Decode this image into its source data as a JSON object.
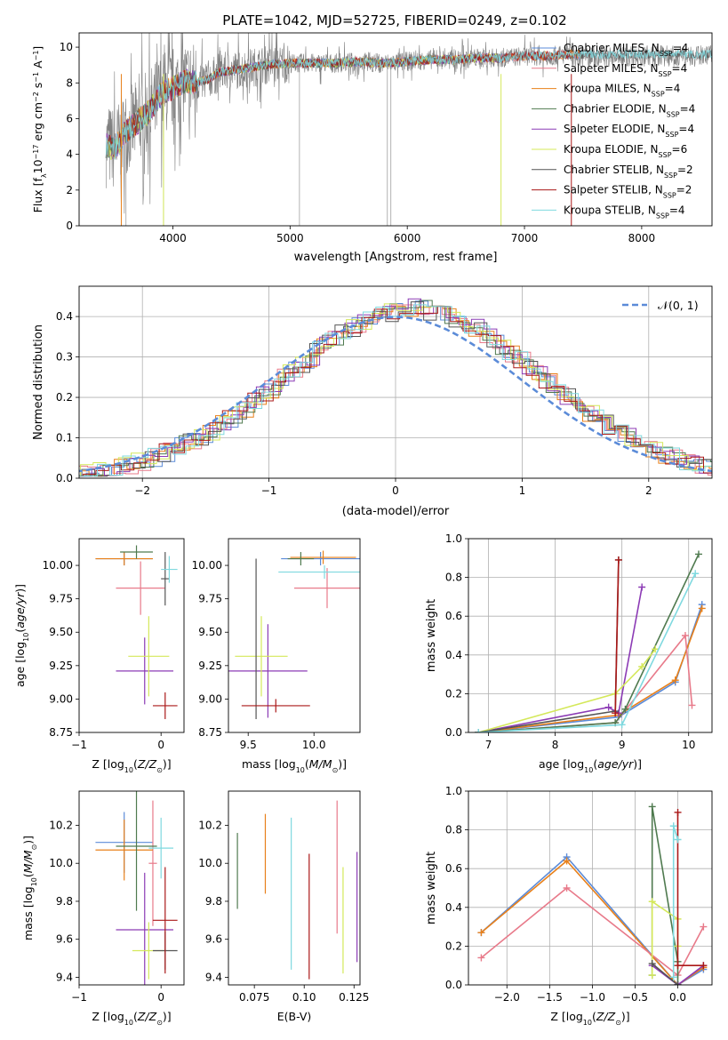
{
  "figure": {
    "title": "PLATE=1042, MJD=52725, FIBERID=0249, z=0.102"
  },
  "colors": {
    "Chabrier MILES": "#5b8bd8",
    "Salpeter MILES": "#e87a8a",
    "Kroupa MILES": "#e8801a",
    "Chabrier ELODIE": "#4f7a4f",
    "Salpeter ELODIE": "#8c3bb5",
    "Kroupa ELODIE": "#d4e85a",
    "Chabrier STELIB": "#555555",
    "Salpeter STELIB": "#aa1818",
    "Kroupa STELIB": "#7fd9df",
    "data": "#808080",
    "gaussian": "#5b8bd8"
  },
  "chart_data": [
    {
      "id": "spectrum",
      "type": "line",
      "xlabel": "wavelength [Angstrom, rest frame]",
      "ylabel": "Flux [f_λ 10^-17 erg cm^-2 s^-1 A^-1]",
      "xlim": [
        3200,
        8600
      ],
      "ylim": [
        0,
        10.8
      ],
      "xticks": [
        4000,
        5000,
        6000,
        7000,
        8000
      ],
      "yticks": [
        0,
        2,
        4,
        6,
        8,
        10
      ],
      "legend_position": "top-right",
      "legend": [
        "Chabrier MILES, N_SSP=4",
        "Salpeter MILES, N_SSP=4",
        "Kroupa MILES, N_SSP=4",
        "Chabrier ELODIE, N_SSP=4",
        "Salpeter ELODIE, N_SSP=4",
        "Kroupa ELODIE, N_SSP=6",
        "Chabrier STELIB, N_SSP=2",
        "Salpeter STELIB, N_SSP=2",
        "Kroupa STELIB, N_SSP=4"
      ],
      "continuum": {
        "x": [
          3430,
          3500,
          3600,
          3700,
          3800,
          3900,
          4000,
          4100,
          4200,
          4300,
          4400,
          4600,
          4800,
          5000,
          5200,
          5400,
          5600,
          5800,
          6000,
          6200,
          6400,
          6600,
          6800,
          7000,
          7200,
          7400
        ],
        "y": [
          4.5,
          4.3,
          5.3,
          5.8,
          6.4,
          7.4,
          7.7,
          8.1,
          8.0,
          8.2,
          8.6,
          8.8,
          9.0,
          9.1,
          9.1,
          9.1,
          9.2,
          9.1,
          9.2,
          9.3,
          9.3,
          9.4,
          9.4,
          9.5,
          9.5,
          9.6
        ]
      }
    },
    {
      "id": "residuals",
      "type": "bar",
      "xlabel": "(data-model)/error",
      "ylabel": "Normed distribution",
      "xlim": [
        -2.5,
        2.5
      ],
      "ylim": [
        0,
        0.475
      ],
      "xticks": [
        -2,
        -1,
        0,
        1,
        2
      ],
      "yticks": [
        0.0,
        0.1,
        0.2,
        0.3,
        0.4
      ],
      "grid": true,
      "legend": [
        "N(0,1)"
      ],
      "legend_position": "top-right"
    },
    {
      "id": "age-vs-Z",
      "type": "scatter",
      "xlabel": "Z [log10(Z/Z⊙)]",
      "ylabel": "age [log10(age/yr)]",
      "xlim": [
        -1.0,
        0.28
      ],
      "ylim": [
        8.75,
        10.2
      ],
      "xticks": [
        -1,
        0
      ],
      "yticks": [
        8.75,
        9.0,
        9.25,
        9.5,
        9.75,
        10.0
      ],
      "points": [
        {
          "model": "Chabrier MILES",
          "x": -0.45,
          "xerr": 0.35,
          "y": 10.05,
          "yerr": 0.05
        },
        {
          "model": "Salpeter MILES",
          "x": -0.25,
          "xerr": 0.3,
          "y": 9.83,
          "yerr": 0.2
        },
        {
          "model": "Kroupa MILES",
          "x": -0.45,
          "xerr": 0.35,
          "y": 10.05,
          "yerr": 0.05
        },
        {
          "model": "Chabrier ELODIE",
          "x": -0.3,
          "xerr": 0.2,
          "y": 10.1,
          "yerr": 0.05
        },
        {
          "model": "Salpeter ELODIE",
          "x": -0.2,
          "xerr": 0.35,
          "y": 9.21,
          "yerr": 0.25
        },
        {
          "model": "Kroupa ELODIE",
          "x": -0.15,
          "xerr": 0.25,
          "y": 9.32,
          "yerr": 0.3
        },
        {
          "model": "Chabrier STELIB",
          "x": 0.05,
          "xerr": 0.05,
          "y": 9.9,
          "yerr": 0.2
        },
        {
          "model": "Salpeter STELIB",
          "x": 0.05,
          "xerr": 0.15,
          "y": 8.95,
          "yerr": 0.1
        },
        {
          "model": "Kroupa STELIB",
          "x": 0.1,
          "xerr": 0.1,
          "y": 9.97,
          "yerr": 0.1
        }
      ]
    },
    {
      "id": "age-vs-mass",
      "type": "scatter",
      "xlabel": "mass [log10(M/M⊙)]",
      "xlim": [
        9.35,
        10.35
      ],
      "ylim": [
        8.75,
        10.2
      ],
      "xticks": [
        9.5,
        10.0
      ],
      "yticks": [
        8.75,
        9.0,
        9.25,
        9.5,
        9.75,
        10.0
      ]
    },
    {
      "id": "weight-vs-age",
      "type": "line",
      "xlabel": "age [log10(age/yr)]",
      "ylabel": "mass weight",
      "xlim": [
        6.7,
        10.35
      ],
      "ylim": [
        0,
        1.0
      ],
      "xticks": [
        7,
        8,
        9,
        10
      ],
      "yticks": [
        0.0,
        0.2,
        0.4,
        0.6,
        0.8,
        1.0
      ],
      "grid": true,
      "series": [
        {
          "model": "Chabrier MILES",
          "x": [
            6.85,
            8.95,
            9.8,
            10.2
          ],
          "y": [
            0.0,
            0.08,
            0.26,
            0.66
          ]
        },
        {
          "model": "Kroupa MILES",
          "x": [
            6.85,
            8.95,
            9.8,
            10.2
          ],
          "y": [
            0.0,
            0.09,
            0.27,
            0.64
          ]
        },
        {
          "model": "Salpeter MILES",
          "x": [
            6.85,
            8.9,
            9.95,
            10.05
          ],
          "y": [
            0.0,
            0.05,
            0.5,
            0.14
          ]
        },
        {
          "model": "Chabrier ELODIE",
          "x": [
            6.85,
            8.9,
            9.05,
            10.15
          ],
          "y": [
            0.0,
            0.05,
            0.12,
            0.92
          ]
        },
        {
          "model": "Salpeter ELODIE",
          "x": [
            6.85,
            8.8,
            8.95,
            9.3
          ],
          "y": [
            0.0,
            0.13,
            0.1,
            0.75
          ]
        },
        {
          "model": "Kroupa ELODIE",
          "x": [
            6.85,
            8.9,
            9.3,
            9.5
          ],
          "y": [
            0.0,
            0.2,
            0.34,
            0.43
          ]
        },
        {
          "model": "Chabrier STELIB",
          "x": [
            6.85,
            8.9,
            8.95
          ],
          "y": [
            0.0,
            0.11,
            0.89
          ]
        },
        {
          "model": "Salpeter STELIB",
          "x": [
            8.9,
            8.95
          ],
          "y": [
            0.1,
            0.89
          ]
        },
        {
          "model": "Kroupa STELIB",
          "x": [
            6.85,
            9.0,
            10.1
          ],
          "y": [
            0.0,
            0.04,
            0.82
          ]
        }
      ]
    },
    {
      "id": "mass-vs-Z",
      "type": "scatter",
      "xlabel": "Z [log10(Z/Z⊙)]",
      "ylabel": "mass [log10(M/M⊙)]",
      "xlim": [
        -1.0,
        0.28
      ],
      "ylim": [
        9.36,
        10.38
      ],
      "xticks": [
        -1,
        0
      ],
      "yticks": [
        9.4,
        9.6,
        9.8,
        10.0,
        10.2
      ]
    },
    {
      "id": "mass-vs-ebv",
      "type": "scatter",
      "xlabel": "E(B-V)",
      "xlim": [
        0.062,
        0.128
      ],
      "ylim": [
        9.36,
        10.38
      ],
      "xticks": [
        0.075,
        0.1,
        0.125
      ],
      "yticks": [
        9.4,
        9.6,
        9.8,
        10.0,
        10.2
      ]
    },
    {
      "id": "weight-vs-Z",
      "type": "line",
      "xlabel": "Z [log10(Z/Z⊙)]",
      "ylabel": "mass weight",
      "xlim": [
        -2.45,
        0.4
      ],
      "ylim": [
        0,
        1.0
      ],
      "xticks": [
        -2.0,
        -1.5,
        -1.0,
        -0.5,
        0.0
      ],
      "yticks": [
        0.0,
        0.2,
        0.4,
        0.6,
        0.8,
        1.0
      ],
      "grid": true,
      "series": [
        {
          "model": "Chabrier MILES",
          "x": [
            -2.3,
            -1.3,
            0.0,
            0.3
          ],
          "y": [
            0.27,
            0.66,
            0.0,
            0.08
          ]
        },
        {
          "model": "Kroupa MILES",
          "x": [
            -2.3,
            -1.3,
            0.0,
            0.3
          ],
          "y": [
            0.27,
            0.64,
            0.0,
            0.09
          ]
        },
        {
          "model": "Salpeter MILES",
          "x": [
            -2.3,
            -1.3,
            0.0,
            0.3
          ],
          "y": [
            0.14,
            0.5,
            0.05,
            0.3
          ]
        },
        {
          "model": "Chabrier ELODIE",
          "x": [
            -0.3,
            -0.3,
            0.0,
            0.0
          ],
          "y": [
            0.05,
            0.92,
            0.12,
            0.0
          ]
        },
        {
          "model": "Salpeter ELODIE",
          "x": [
            -0.3,
            0.0,
            0.3
          ],
          "y": [
            0.1,
            0.0,
            0.1
          ]
        },
        {
          "model": "Kroupa ELODIE",
          "x": [
            -0.3,
            -0.3,
            0.0,
            0.0
          ],
          "y": [
            0.05,
            0.43,
            0.34,
            0.2
          ]
        },
        {
          "model": "Chabrier STELIB",
          "x": [
            -0.3,
            0.0
          ],
          "y": [
            0.11,
            0.0
          ]
        },
        {
          "model": "Salpeter STELIB",
          "x": [
            0.0,
            0.0,
            0.3
          ],
          "y": [
            0.89,
            0.1,
            0.1
          ]
        },
        {
          "model": "Kroupa STELIB",
          "x": [
            -0.05,
            -0.05,
            0.0
          ],
          "y": [
            0.04,
            0.82,
            0.75
          ]
        }
      ]
    }
  ]
}
